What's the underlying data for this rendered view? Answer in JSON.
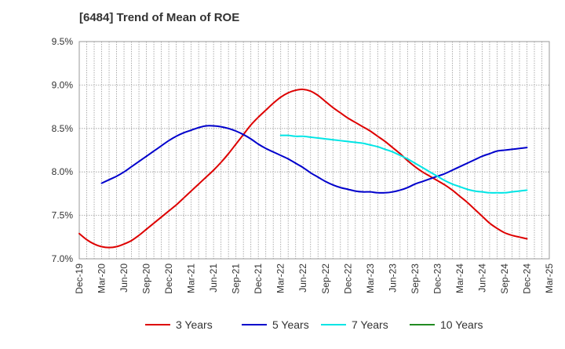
{
  "chart_data": {
    "type": "line",
    "title": "[6484]  Trend of Mean of ROE",
    "xlabel": "",
    "ylabel": "",
    "x_ticks": [
      "Dec-19",
      "Mar-20",
      "Jun-20",
      "Sep-20",
      "Dec-20",
      "Mar-21",
      "Jun-21",
      "Sep-21",
      "Dec-21",
      "Mar-22",
      "Jun-22",
      "Sep-22",
      "Dec-22",
      "Mar-23",
      "Jun-23",
      "Sep-23",
      "Dec-23",
      "Mar-24",
      "Jun-24",
      "Sep-24",
      "Dec-24",
      "Mar-25"
    ],
    "y_ticks": [
      "7.0%",
      "7.5%",
      "8.0%",
      "8.5%",
      "9.0%",
      "9.5%"
    ],
    "ylim": [
      7.0,
      9.5
    ],
    "grid": true,
    "legend_position": "bottom",
    "series": [
      {
        "name": "3 Years",
        "color": "#dd0000",
        "points": [
          [
            "Dec-19",
            7.29
          ],
          [
            "Jan-20",
            7.22
          ],
          [
            "Feb-20",
            7.17
          ],
          [
            "Mar-20",
            7.14
          ],
          [
            "Apr-20",
            7.13
          ],
          [
            "May-20",
            7.14
          ],
          [
            "Jun-20",
            7.17
          ],
          [
            "Jul-20",
            7.21
          ],
          [
            "Aug-20",
            7.27
          ],
          [
            "Sep-20",
            7.34
          ],
          [
            "Oct-20",
            7.41
          ],
          [
            "Nov-20",
            7.48
          ],
          [
            "Dec-20",
            7.55
          ],
          [
            "Jan-21",
            7.62
          ],
          [
            "Feb-21",
            7.7
          ],
          [
            "Mar-21",
            7.78
          ],
          [
            "Apr-21",
            7.86
          ],
          [
            "May-21",
            7.94
          ],
          [
            "Jun-21",
            8.02
          ],
          [
            "Jul-21",
            8.11
          ],
          [
            "Aug-21",
            8.21
          ],
          [
            "Sep-21",
            8.32
          ],
          [
            "Oct-21",
            8.43
          ],
          [
            "Nov-21",
            8.54
          ],
          [
            "Dec-21",
            8.63
          ],
          [
            "Jan-22",
            8.71
          ],
          [
            "Feb-22",
            8.79
          ],
          [
            "Mar-22",
            8.86
          ],
          [
            "Apr-22",
            8.91
          ],
          [
            "May-22",
            8.94
          ],
          [
            "Jun-22",
            8.95
          ],
          [
            "Jul-22",
            8.93
          ],
          [
            "Aug-22",
            8.88
          ],
          [
            "Sep-22",
            8.81
          ],
          [
            "Oct-22",
            8.74
          ],
          [
            "Nov-22",
            8.68
          ],
          [
            "Dec-22",
            8.62
          ],
          [
            "Jan-23",
            8.57
          ],
          [
            "Feb-23",
            8.52
          ],
          [
            "Mar-23",
            8.47
          ],
          [
            "Apr-23",
            8.41
          ],
          [
            "May-23",
            8.35
          ],
          [
            "Jun-23",
            8.28
          ],
          [
            "Jul-23",
            8.21
          ],
          [
            "Aug-23",
            8.13
          ],
          [
            "Sep-23",
            8.06
          ],
          [
            "Oct-23",
            8.0
          ],
          [
            "Nov-23",
            7.95
          ],
          [
            "Dec-23",
            7.9
          ],
          [
            "Jan-24",
            7.85
          ],
          [
            "Feb-24",
            7.79
          ],
          [
            "Mar-24",
            7.72
          ],
          [
            "Apr-24",
            7.65
          ],
          [
            "May-24",
            7.57
          ],
          [
            "Jun-24",
            7.49
          ],
          [
            "Jul-24",
            7.41
          ],
          [
            "Aug-24",
            7.35
          ],
          [
            "Sep-24",
            7.3
          ],
          [
            "Oct-24",
            7.27
          ],
          [
            "Nov-24",
            7.25
          ],
          [
            "Dec-24",
            7.23
          ]
        ]
      },
      {
        "name": "5 Years",
        "color": "#0000cc",
        "points": [
          [
            "Mar-20",
            7.87
          ],
          [
            "Apr-20",
            7.91
          ],
          [
            "May-20",
            7.95
          ],
          [
            "Jun-20",
            8.0
          ],
          [
            "Jul-20",
            8.06
          ],
          [
            "Aug-20",
            8.12
          ],
          [
            "Sep-20",
            8.18
          ],
          [
            "Oct-20",
            8.24
          ],
          [
            "Nov-20",
            8.3
          ],
          [
            "Dec-20",
            8.36
          ],
          [
            "Jan-21",
            8.41
          ],
          [
            "Feb-21",
            8.45
          ],
          [
            "Mar-21",
            8.48
          ],
          [
            "Apr-21",
            8.51
          ],
          [
            "May-21",
            8.53
          ],
          [
            "Jun-21",
            8.53
          ],
          [
            "Jul-21",
            8.52
          ],
          [
            "Aug-21",
            8.5
          ],
          [
            "Sep-21",
            8.47
          ],
          [
            "Oct-21",
            8.43
          ],
          [
            "Nov-21",
            8.38
          ],
          [
            "Dec-21",
            8.32
          ],
          [
            "Jan-22",
            8.27
          ],
          [
            "Feb-22",
            8.23
          ],
          [
            "Mar-22",
            8.19
          ],
          [
            "Apr-22",
            8.15
          ],
          [
            "May-22",
            8.1
          ],
          [
            "Jun-22",
            8.05
          ],
          [
            "Jul-22",
            7.99
          ],
          [
            "Aug-22",
            7.94
          ],
          [
            "Sep-22",
            7.89
          ],
          [
            "Oct-22",
            7.85
          ],
          [
            "Nov-22",
            7.82
          ],
          [
            "Dec-22",
            7.8
          ],
          [
            "Jan-23",
            7.78
          ],
          [
            "Feb-23",
            7.77
          ],
          [
            "Mar-23",
            7.77
          ],
          [
            "Apr-23",
            7.76
          ],
          [
            "May-23",
            7.76
          ],
          [
            "Jun-23",
            7.77
          ],
          [
            "Jul-23",
            7.79
          ],
          [
            "Aug-23",
            7.82
          ],
          [
            "Sep-23",
            7.86
          ],
          [
            "Oct-23",
            7.89
          ],
          [
            "Nov-23",
            7.92
          ],
          [
            "Dec-23",
            7.95
          ],
          [
            "Jan-24",
            7.98
          ],
          [
            "Feb-24",
            8.02
          ],
          [
            "Mar-24",
            8.06
          ],
          [
            "Apr-24",
            8.1
          ],
          [
            "May-24",
            8.14
          ],
          [
            "Jun-24",
            8.18
          ],
          [
            "Jul-24",
            8.21
          ],
          [
            "Aug-24",
            8.24
          ],
          [
            "Sep-24",
            8.25
          ],
          [
            "Oct-24",
            8.26
          ],
          [
            "Nov-24",
            8.27
          ],
          [
            "Dec-24",
            8.28
          ]
        ]
      },
      {
        "name": "7 Years",
        "color": "#00e5e5",
        "points": [
          [
            "Mar-22",
            8.42
          ],
          [
            "Apr-22",
            8.42
          ],
          [
            "May-22",
            8.41
          ],
          [
            "Jun-22",
            8.41
          ],
          [
            "Jul-22",
            8.4
          ],
          [
            "Aug-22",
            8.39
          ],
          [
            "Sep-22",
            8.38
          ],
          [
            "Oct-22",
            8.37
          ],
          [
            "Nov-22",
            8.36
          ],
          [
            "Dec-22",
            8.35
          ],
          [
            "Jan-23",
            8.34
          ],
          [
            "Feb-23",
            8.33
          ],
          [
            "Mar-23",
            8.31
          ],
          [
            "Apr-23",
            8.29
          ],
          [
            "May-23",
            8.26
          ],
          [
            "Jun-23",
            8.23
          ],
          [
            "Jul-23",
            8.19
          ],
          [
            "Aug-23",
            8.15
          ],
          [
            "Sep-23",
            8.1
          ],
          [
            "Oct-23",
            8.05
          ],
          [
            "Nov-23",
            8.0
          ],
          [
            "Dec-23",
            7.95
          ],
          [
            "Jan-24",
            7.9
          ],
          [
            "Feb-24",
            7.86
          ],
          [
            "Mar-24",
            7.83
          ],
          [
            "Apr-24",
            7.8
          ],
          [
            "May-24",
            7.78
          ],
          [
            "Jun-24",
            7.77
          ],
          [
            "Jul-24",
            7.76
          ],
          [
            "Aug-24",
            7.76
          ],
          [
            "Sep-24",
            7.76
          ],
          [
            "Oct-24",
            7.77
          ],
          [
            "Nov-24",
            7.78
          ],
          [
            "Dec-24",
            7.79
          ]
        ]
      },
      {
        "name": "10 Years",
        "color": "#228b22",
        "points": []
      }
    ]
  }
}
